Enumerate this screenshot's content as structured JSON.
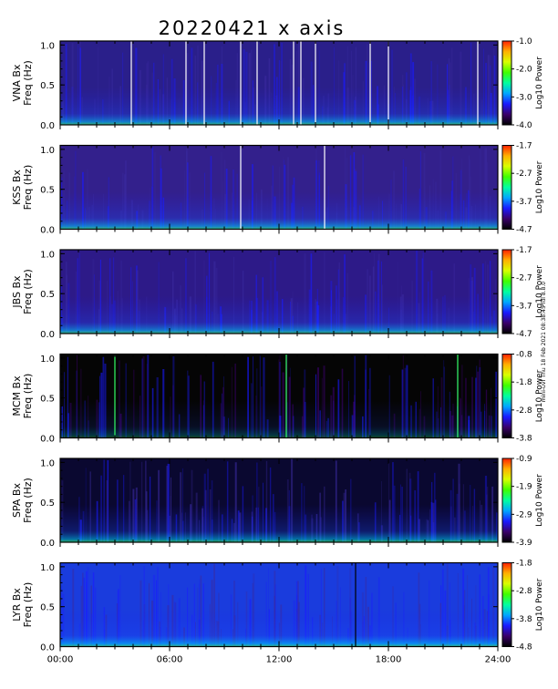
{
  "title": "20220421 x axis",
  "side_note": "mini-uvf Thu 18 Feb 2021 08:38:45 Idl 8.8.0",
  "chart_data": {
    "type": "heatmap",
    "title": "20220421 x axis",
    "x_ticks": [
      "00:00",
      "06:00",
      "12:00",
      "18:00",
      "24:00"
    ],
    "x_range_hours": [
      0,
      24
    ],
    "y_ticks": [
      "0.0",
      "0.5",
      "1.0"
    ],
    "y_range_hz": [
      0,
      1.05
    ],
    "colorbar_label": "Log10 Power",
    "panels": [
      {
        "station": "VNA Bx",
        "ylabel": "Freq (Hz)",
        "cbar_ticks": [
          "-1.0",
          "-2.0",
          "-3.0",
          "-4.0"
        ],
        "cbar_range": [
          -4.0,
          -1.0
        ],
        "vlines_hours": [
          3.9,
          6.9,
          7.9,
          9.9,
          10.8,
          12.8,
          13.2,
          14.0,
          17.0,
          18.0,
          22.9
        ],
        "vline_color": "#ffffff"
      },
      {
        "station": "KSS Bx",
        "ylabel": "Freq (Hz)",
        "cbar_ticks": [
          "-1.7",
          "-2.7",
          "-3.7",
          "-4.7"
        ],
        "cbar_range": [
          -4.7,
          -1.7
        ],
        "vlines_hours": [
          9.9,
          14.5
        ],
        "vline_color": "#ffffff"
      },
      {
        "station": "JBS Bx",
        "ylabel": "Freq (Hz)",
        "cbar_ticks": [
          "-1.7",
          "-2.7",
          "-3.7",
          "-4.7"
        ],
        "cbar_range": [
          -4.7,
          -1.7
        ],
        "vlines_hours": [],
        "vline_color": "#ffffff"
      },
      {
        "station": "MCM Bx",
        "ylabel": "Freq (Hz)",
        "cbar_ticks": [
          "-0.8",
          "-1.8",
          "-2.8",
          "-3.8"
        ],
        "cbar_range": [
          -3.8,
          -0.8
        ],
        "vlines_hours": [
          3.0,
          12.4,
          21.8
        ],
        "vline_color": "#33ff66"
      },
      {
        "station": "SPA Bx",
        "ylabel": "Freq (Hz)",
        "cbar_ticks": [
          "-0.9",
          "-1.9",
          "-2.9",
          "-3.9"
        ],
        "cbar_range": [
          -3.9,
          -0.9
        ],
        "vlines_hours": [],
        "vline_color": "#ffffff"
      },
      {
        "station": "LYR Bx",
        "ylabel": "Freq (Hz)",
        "cbar_ticks": [
          "-1.8",
          "-2.8",
          "-3.8",
          "-4.8"
        ],
        "cbar_range": [
          -4.8,
          -1.8
        ],
        "vlines_hours": [
          16.2
        ],
        "vline_color": "#000000"
      }
    ]
  },
  "colors": {
    "colormap": [
      "#000000",
      "#3a006a",
      "#1a1aff",
      "#00a6ff",
      "#00ffa0",
      "#40ff00",
      "#d8ff00",
      "#ffb000",
      "#ff2000"
    ]
  }
}
